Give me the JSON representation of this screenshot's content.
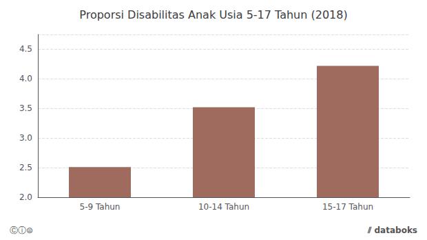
{
  "chart_data": {
    "type": "bar",
    "title": "Proporsi Disabilitas Anak Usia 5-17 Tahun (2018)",
    "categories": [
      "5-9 Tahun",
      "10-14 Tahun",
      "15-17 Tahun"
    ],
    "values": [
      2.51,
      3.52,
      4.22
    ],
    "color": "#9e6b5e",
    "ylim": [
      2.0,
      4.75
    ],
    "yticks": [
      {
        "value": 2.0,
        "label": "2.0"
      },
      2.5,
      {
        "value": 3.0,
        "label": "3.0"
      },
      3.5,
      {
        "value": 4.0,
        "label": "4.0"
      },
      4.5
    ],
    "grid": true,
    "annotations": [
      "Ⓒⓘ⊜",
      "⫽ databoks"
    ]
  }
}
